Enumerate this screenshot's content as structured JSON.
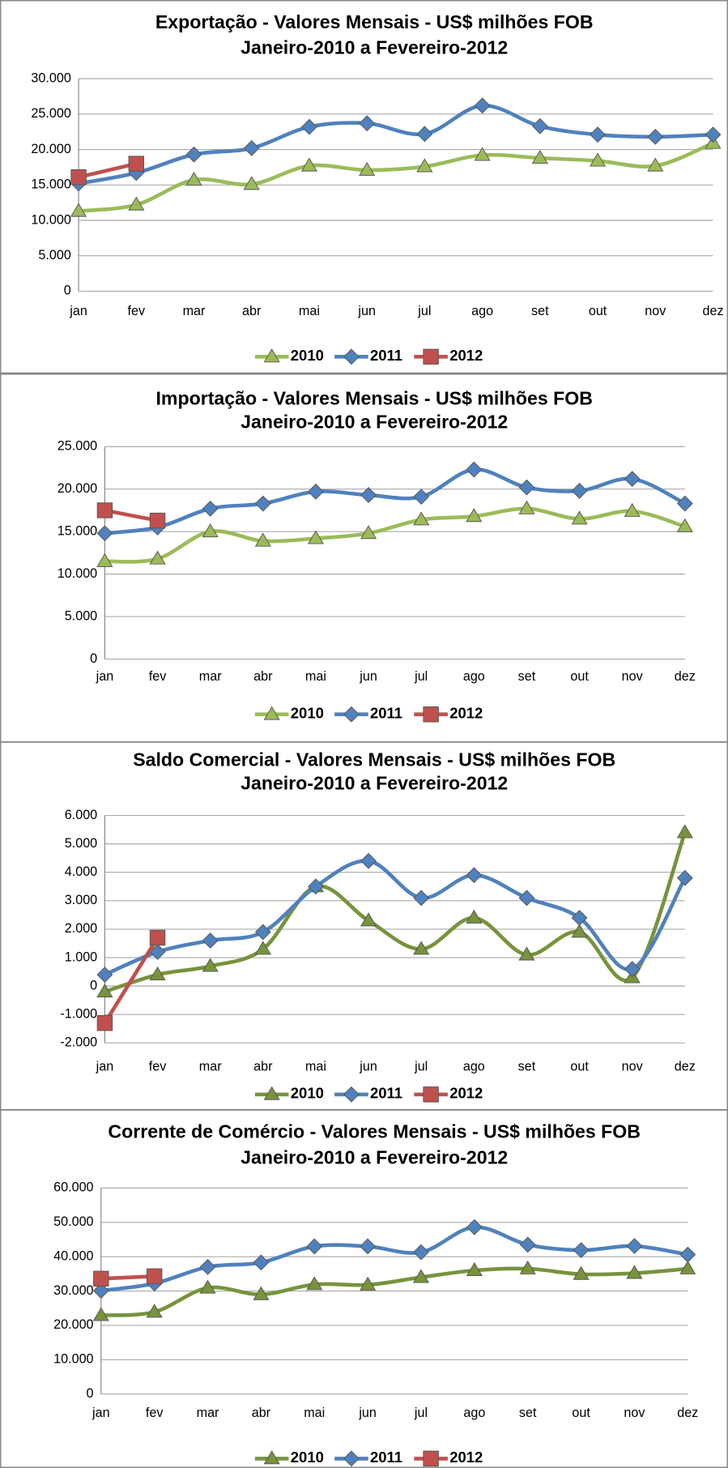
{
  "chart_data": [
    {
      "type": "line",
      "title": "Exportação - Valores Mensais -  US$ milhões FOB",
      "subtitle": "Janeiro-2010 a Fevereiro-2012",
      "categories": [
        "jan",
        "fev",
        "mar",
        "abr",
        "mai",
        "jun",
        "jul",
        "ago",
        "set",
        "out",
        "nov",
        "dez"
      ],
      "ylim": [
        0,
        30000
      ],
      "yticks": [
        0,
        {
          "value": 5000,
          "label": "5.000"
        },
        {
          "value": 10000,
          "label": "10.000"
        },
        {
          "value": 15000,
          "label": "15.000"
        },
        {
          "value": 20000,
          "label": "20.000"
        },
        {
          "value": 25000,
          "label": "25.000"
        },
        {
          "value": 30000,
          "label": "30.000"
        }
      ],
      "grid": true,
      "legend": "bottom",
      "series": [
        {
          "name": "2010",
          "color": "#9bbb59",
          "marker": "triangle",
          "values": [
            11300,
            12200,
            15700,
            15100,
            17700,
            17100,
            17600,
            19200,
            18800,
            18400,
            17700,
            20900
          ]
        },
        {
          "name": "2011",
          "color": "#4f81bd",
          "marker": "diamond",
          "values": [
            15200,
            16700,
            19300,
            20200,
            23200,
            23700,
            22200,
            26200,
            23300,
            22100,
            21800,
            22100
          ]
        },
        {
          "name": "2012",
          "color": "#c0504d",
          "marker": "square",
          "values": [
            16100,
            18000,
            null,
            null,
            null,
            null,
            null,
            null,
            null,
            null,
            null,
            null
          ]
        }
      ]
    },
    {
      "type": "line",
      "title": "Importação - Valores Mensais -  US$ milhões FOB",
      "subtitle": "Janeiro-2010 a Fevereiro-2012",
      "categories": [
        "jan",
        "fev",
        "mar",
        "abr",
        "mai",
        "jun",
        "jul",
        "ago",
        "set",
        "out",
        "nov",
        "dez"
      ],
      "ylim": [
        0,
        25000
      ],
      "yticks": [
        0,
        {
          "value": 5000,
          "label": "5.000"
        },
        {
          "value": 10000,
          "label": "10.000"
        },
        {
          "value": 15000,
          "label": "15.000"
        },
        {
          "value": 20000,
          "label": "20.000"
        },
        {
          "value": 25000,
          "label": "25.000"
        }
      ],
      "grid": true,
      "legend": "bottom",
      "series": [
        {
          "name": "2010",
          "color": "#9bbb59",
          "marker": "triangle",
          "values": [
            11500,
            11800,
            15000,
            13900,
            14200,
            14800,
            16400,
            16800,
            17700,
            16500,
            17400,
            15600
          ]
        },
        {
          "name": "2011",
          "color": "#4f81bd",
          "marker": "diamond",
          "values": [
            14800,
            15500,
            17700,
            18300,
            19700,
            19300,
            19100,
            22300,
            20200,
            19800,
            21200,
            18300
          ]
        },
        {
          "name": "2012",
          "color": "#c0504d",
          "marker": "square",
          "values": [
            17500,
            16300,
            null,
            null,
            null,
            null,
            null,
            null,
            null,
            null,
            null,
            null
          ]
        }
      ]
    },
    {
      "type": "line",
      "title": "Saldo Comercial - Valores Mensais - US$ milhões FOB",
      "subtitle": "Janeiro-2010 a Fevereiro-2012",
      "categories": [
        "jan",
        "fev",
        "mar",
        "abr",
        "mai",
        "jun",
        "jul",
        "ago",
        "set",
        "out",
        "nov",
        "dez"
      ],
      "ylim": [
        -2000,
        6000
      ],
      "yticks": [
        {
          "value": -2000,
          "label": "-2.000"
        },
        {
          "value": -1000,
          "label": "-1.000"
        },
        0,
        {
          "value": 1000,
          "label": "1.000"
        },
        {
          "value": 2000,
          "label": "2.000"
        },
        {
          "value": 3000,
          "label": "3.000"
        },
        {
          "value": 4000,
          "label": "4.000"
        },
        {
          "value": 5000,
          "label": "5.000"
        },
        {
          "value": 6000,
          "label": "6.000"
        }
      ],
      "grid": true,
      "legend": "bottom",
      "series": [
        {
          "name": "2010",
          "color": "#77933c",
          "marker": "triangle",
          "values": [
            -200,
            400,
            700,
            1300,
            3500,
            2300,
            1300,
            2400,
            1100,
            1900,
            300,
            5400
          ]
        },
        {
          "name": "2011",
          "color": "#4f81bd",
          "marker": "diamond",
          "values": [
            400,
            1200,
            1600,
            1900,
            3500,
            4400,
            3100,
            3900,
            3100,
            2400,
            600,
            3800
          ]
        },
        {
          "name": "2012",
          "color": "#c0504d",
          "marker": "square",
          "values": [
            -1300,
            1700,
            null,
            null,
            null,
            null,
            null,
            null,
            null,
            null,
            null,
            null
          ]
        }
      ]
    },
    {
      "type": "line",
      "title": "Corrente de Comércio - Valores Mensais -  US$ milhões FOB",
      "subtitle": "Janeiro-2010 a Fevereiro-2012",
      "categories": [
        "jan",
        "fev",
        "mar",
        "abr",
        "mai",
        "jun",
        "jul",
        "ago",
        "set",
        "out",
        "nov",
        "dez"
      ],
      "ylim": [
        0,
        60000
      ],
      "yticks": [
        0,
        {
          "value": 10000,
          "label": "10.000"
        },
        {
          "value": 20000,
          "label": "20.000"
        },
        {
          "value": 30000,
          "label": "30.000"
        },
        {
          "value": 40000,
          "label": "40.000"
        },
        {
          "value": 50000,
          "label": "50.000"
        },
        {
          "value": 60000,
          "label": "60.000"
        }
      ],
      "grid": true,
      "legend": "bottom",
      "series": [
        {
          "name": "2010",
          "color": "#77933c",
          "marker": "triangle",
          "values": [
            22900,
            23900,
            30900,
            29000,
            31900,
            31800,
            34000,
            36000,
            36500,
            34900,
            35200,
            36500
          ]
        },
        {
          "name": "2011",
          "color": "#4f81bd",
          "marker": "diamond",
          "values": [
            30100,
            32200,
            37000,
            38300,
            43000,
            43000,
            41300,
            48600,
            43500,
            41900,
            43100,
            40600
          ]
        },
        {
          "name": "2012",
          "color": "#c0504d",
          "marker": "square",
          "values": [
            33600,
            34300,
            null,
            null,
            null,
            null,
            null,
            null,
            null,
            null,
            null,
            null
          ]
        }
      ]
    }
  ]
}
